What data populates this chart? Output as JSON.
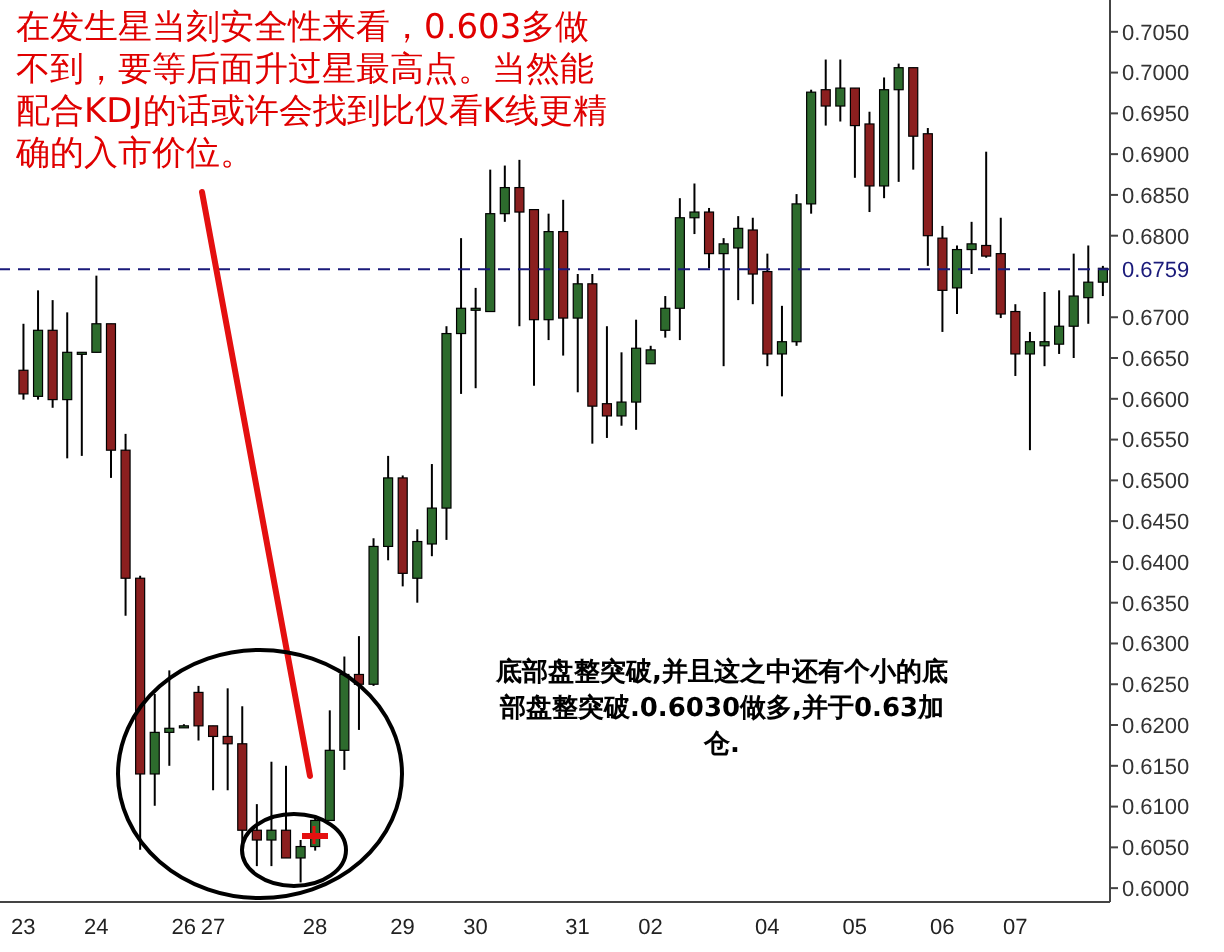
{
  "chart_data": {
    "type": "candlestick",
    "categories": [
      "23",
      null,
      null,
      null,
      null,
      "24",
      null,
      null,
      null,
      null,
      null,
      "26",
      null,
      "27",
      null,
      null,
      null,
      null,
      null,
      null,
      "28",
      null,
      null,
      null,
      null,
      null,
      "29",
      null,
      null,
      null,
      null,
      "30",
      null,
      null,
      null,
      null,
      null,
      null,
      "31",
      null,
      null,
      null,
      null,
      "02",
      null,
      null,
      null,
      null,
      null,
      null,
      null,
      "04",
      null,
      null,
      null,
      null,
      null,
      "05",
      null,
      null,
      null,
      null,
      null,
      "06",
      null,
      null,
      null,
      null,
      "07",
      null,
      null,
      null,
      null,
      null,
      null
    ],
    "ohlc": [
      [
        0.6635,
        0.6692,
        0.6599,
        0.6606
      ],
      [
        0.6603,
        0.6733,
        0.6599,
        0.6684
      ],
      [
        0.6684,
        0.6721,
        0.6589,
        0.6599
      ],
      [
        0.6599,
        0.6706,
        0.6527,
        0.6657
      ],
      [
        0.6657,
        0.6657,
        0.653,
        0.6657
      ],
      [
        0.6657,
        0.6751,
        0.6657,
        0.6692
      ],
      [
        0.6692,
        0.6692,
        0.6503,
        0.6537
      ],
      [
        0.6537,
        0.6557,
        0.6334,
        0.638
      ],
      [
        0.638,
        0.6383,
        0.6047,
        0.614
      ],
      [
        0.614,
        0.6238,
        0.6101,
        0.6191
      ],
      [
        0.6191,
        0.6267,
        0.615,
        0.6196
      ],
      [
        0.6199,
        0.6201,
        0.6197,
        0.6199
      ],
      [
        0.624,
        0.6248,
        0.6181,
        0.6199
      ],
      [
        0.6199,
        0.6199,
        0.612,
        0.6186
      ],
      [
        0.6186,
        0.6245,
        0.612,
        0.6177
      ],
      [
        0.6177,
        0.6223,
        0.6052,
        0.6071
      ],
      [
        0.6071,
        0.6103,
        0.6027,
        0.6059
      ],
      [
        0.6059,
        0.6155,
        0.6027,
        0.6071
      ],
      [
        0.6071,
        0.615,
        0.6037,
        0.6037
      ],
      [
        0.6037,
        0.6059,
        0.6007,
        0.6051
      ],
      [
        0.6051,
        0.6088,
        0.6046,
        0.6083
      ],
      [
        0.6083,
        0.6218,
        0.6083,
        0.6169
      ],
      [
        0.6169,
        0.6284,
        0.6145,
        0.6262
      ],
      [
        0.6262,
        0.6309,
        0.6194,
        0.625
      ],
      [
        0.625,
        0.6429,
        0.6248,
        0.6419
      ],
      [
        0.6419,
        0.653,
        0.6402,
        0.6503
      ],
      [
        0.6503,
        0.6506,
        0.637,
        0.6386
      ],
      [
        0.638,
        0.644,
        0.635,
        0.6425
      ],
      [
        0.6422,
        0.652,
        0.6407,
        0.6466
      ],
      [
        0.6466,
        0.6689,
        0.6427,
        0.668
      ],
      [
        0.668,
        0.6797,
        0.6606,
        0.6711
      ],
      [
        0.6709,
        0.6736,
        0.6613,
        0.6711
      ],
      [
        0.6707,
        0.6881,
        0.6707,
        0.6827
      ],
      [
        0.6827,
        0.6886,
        0.6817,
        0.6859
      ],
      [
        0.6859,
        0.6893,
        0.6689,
        0.6829
      ],
      [
        0.6832,
        0.6832,
        0.6616,
        0.6697
      ],
      [
        0.6697,
        0.6827,
        0.6672,
        0.6805
      ],
      [
        0.6805,
        0.6844,
        0.6653,
        0.6699
      ],
      [
        0.6699,
        0.6753,
        0.6608,
        0.6741
      ],
      [
        0.6741,
        0.6753,
        0.6545,
        0.6591
      ],
      [
        0.6594,
        0.6689,
        0.6552,
        0.6579
      ],
      [
        0.6579,
        0.6657,
        0.6567,
        0.6596
      ],
      [
        0.6596,
        0.6697,
        0.6562,
        0.6662
      ],
      [
        0.6643,
        0.6665,
        0.6643,
        0.666
      ],
      [
        0.6684,
        0.6726,
        0.6675,
        0.6711
      ],
      [
        0.6711,
        0.6846,
        0.6672,
        0.6822
      ],
      [
        0.6822,
        0.6864,
        0.6802,
        0.6829
      ],
      [
        0.6829,
        0.6834,
        0.676,
        0.6778
      ],
      [
        0.6778,
        0.6797,
        0.664,
        0.679
      ],
      [
        0.6785,
        0.6824,
        0.6721,
        0.6809
      ],
      [
        0.6807,
        0.6822,
        0.6716,
        0.6753
      ],
      [
        0.6756,
        0.6778,
        0.664,
        0.6655
      ],
      [
        0.6655,
        0.6714,
        0.6603,
        0.667
      ],
      [
        0.667,
        0.6851,
        0.6665,
        0.6839
      ],
      [
        0.6839,
        0.6979,
        0.6827,
        0.6976
      ],
      [
        0.6979,
        0.7016,
        0.6935,
        0.6959
      ],
      [
        0.6959,
        0.7016,
        0.694,
        0.6981
      ],
      [
        0.6981,
        0.6981,
        0.6871,
        0.6935
      ],
      [
        0.6937,
        0.6952,
        0.6829,
        0.6861
      ],
      [
        0.6861,
        0.6994,
        0.6846,
        0.6979
      ],
      [
        0.6979,
        0.7011,
        0.6866,
        0.7006
      ],
      [
        0.7006,
        0.7006,
        0.6881,
        0.6922
      ],
      [
        0.6925,
        0.6932,
        0.6763,
        0.68
      ],
      [
        0.6797,
        0.6812,
        0.6682,
        0.6733
      ],
      [
        0.6736,
        0.6788,
        0.6704,
        0.6783
      ],
      [
        0.6783,
        0.6817,
        0.6753,
        0.679
      ],
      [
        0.6788,
        0.6903,
        0.6773,
        0.6775
      ],
      [
        0.6778,
        0.6822,
        0.6699,
        0.6704
      ],
      [
        0.6707,
        0.6716,
        0.6628,
        0.6655
      ],
      [
        0.6655,
        0.6682,
        0.6537,
        0.667
      ],
      [
        0.6665,
        0.6731,
        0.664,
        0.667
      ],
      [
        0.6667,
        0.6733,
        0.6655,
        0.6689
      ],
      [
        0.6689,
        0.6778,
        0.665,
        0.6726
      ],
      [
        0.6724,
        0.6788,
        0.6692,
        0.6743
      ],
      [
        0.6743,
        0.6763,
        0.6726,
        0.676
      ]
    ],
    "colors": [
      "#8b1f1f",
      "#2d6b2d",
      "#8b1f1f",
      "#2d6b2d",
      "#2d6b2d",
      "#2d6b2d",
      "#8b1f1f",
      "#8b1f1f",
      "#8b1f1f",
      "#2d6b2d",
      "#2d6b2d",
      "#2d6b2d",
      "#8b1f1f",
      "#8b1f1f",
      "#8b1f1f",
      "#8b1f1f",
      "#8b1f1f",
      "#2d6b2d",
      "#8b1f1f",
      "#2d6b2d",
      "#2d6b2d",
      "#2d6b2d",
      "#2d6b2d",
      "#8b1f1f",
      "#2d6b2d",
      "#2d6b2d",
      "#8b1f1f",
      "#2d6b2d",
      "#2d6b2d",
      "#2d6b2d",
      "#2d6b2d",
      "#2d6b2d",
      "#2d6b2d",
      "#2d6b2d",
      "#8b1f1f",
      "#8b1f1f",
      "#2d6b2d",
      "#8b1f1f",
      "#2d6b2d",
      "#8b1f1f",
      "#8b1f1f",
      "#2d6b2d",
      "#2d6b2d",
      "#2d6b2d",
      "#2d6b2d",
      "#2d6b2d",
      "#2d6b2d",
      "#8b1f1f",
      "#2d6b2d",
      "#2d6b2d",
      "#8b1f1f",
      "#8b1f1f",
      "#2d6b2d",
      "#2d6b2d",
      "#2d6b2d",
      "#8b1f1f",
      "#2d6b2d",
      "#8b1f1f",
      "#8b1f1f",
      "#2d6b2d",
      "#2d6b2d",
      "#8b1f1f",
      "#8b1f1f",
      "#8b1f1f",
      "#2d6b2d",
      "#2d6b2d",
      "#8b1f1f",
      "#8b1f1f",
      "#8b1f1f",
      "#2d6b2d",
      "#2d6b2d",
      "#2d6b2d",
      "#2d6b2d",
      "#2d6b2d",
      "#2d6b2d"
    ],
    "ylim": [
      0.5983,
      0.7089
    ],
    "yticks": [
      {
        "value": 0.6,
        "label": "0.6000"
      },
      {
        "value": 0.605,
        "label": "0.6050"
      },
      {
        "value": 0.61,
        "label": "0.6100"
      },
      {
        "value": 0.615,
        "label": "0.6150"
      },
      {
        "value": 0.62,
        "label": "0.6200"
      },
      {
        "value": 0.625,
        "label": "0.6250"
      },
      {
        "value": 0.63,
        "label": "0.6300"
      },
      {
        "value": 0.635,
        "label": "0.6350"
      },
      {
        "value": 0.64,
        "label": "0.6400"
      },
      {
        "value": 0.645,
        "label": "0.6450"
      },
      {
        "value": 0.65,
        "label": "0.6500"
      },
      {
        "value": 0.655,
        "label": "0.6550"
      },
      {
        "value": 0.66,
        "label": "0.6600"
      },
      {
        "value": 0.665,
        "label": "0.6650"
      },
      {
        "value": 0.67,
        "label": "0.6700"
      },
      {
        "value": 0.68,
        "label": "0.6800"
      },
      {
        "value": 0.685,
        "label": "0.6850"
      },
      {
        "value": 0.69,
        "label": "0.6900"
      },
      {
        "value": 0.695,
        "label": "0.6950"
      },
      {
        "value": 0.7,
        "label": "0.7000"
      },
      {
        "value": 0.705,
        "label": "0.7050"
      }
    ],
    "ref_lines": [
      {
        "axis": "y",
        "value": 0.6759,
        "label": "0.6759",
        "color": "#1a1a7a",
        "line_style": "dashed"
      }
    ],
    "annotations": [
      "在发生星当刻安全性来看，0.603多做不到，要等后面升过星最高点。当然能配合KDJ的话或许会找到比仅看K线更精确的入市价位。",
      "底部盘整突破,并且这之中还有个小的底部盘整突破.0.6030做多,并于0.63加仓."
    ],
    "grid": false,
    "legend": false
  }
}
